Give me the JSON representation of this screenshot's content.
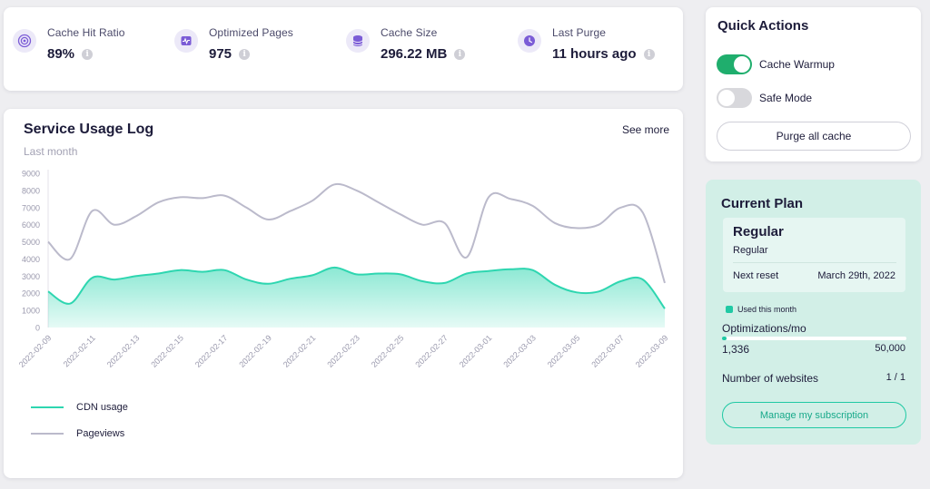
{
  "stats": [
    {
      "label": "Cache Hit Ratio",
      "value": "89%",
      "icon": "target-icon"
    },
    {
      "label": "Optimized Pages",
      "value": "975",
      "icon": "pulse-icon"
    },
    {
      "label": "Cache Size",
      "value": "296.22 MB",
      "icon": "database-icon"
    },
    {
      "label": "Last Purge",
      "value": "11 hours ago",
      "icon": "clock-icon"
    }
  ],
  "info_glyph": "i",
  "usage": {
    "title": "Service Usage Log",
    "subtitle": "Last month",
    "see_more": "See more"
  },
  "chart_data": {
    "type": "area",
    "ylim": [
      0,
      9000
    ],
    "y_ticks": [
      "0",
      "1000",
      "2000",
      "3000",
      "4000",
      "5000",
      "6000",
      "7000",
      "8000",
      "9000"
    ],
    "x_tick_labels": [
      "2022-02-09",
      "2022-02-11",
      "2022-02-13",
      "2022-02-15",
      "2022-02-17",
      "2022-02-19",
      "2022-02-21",
      "2022-02-23",
      "2022-02-25",
      "2022-02-27",
      "2022-03-01",
      "2022-03-03",
      "2022-03-05",
      "2022-03-07",
      "2022-03-09"
    ],
    "x": [
      "2022-02-09",
      "2022-02-10",
      "2022-02-11",
      "2022-02-12",
      "2022-02-13",
      "2022-02-14",
      "2022-02-15",
      "2022-02-16",
      "2022-02-17",
      "2022-02-18",
      "2022-02-19",
      "2022-02-20",
      "2022-02-21",
      "2022-02-22",
      "2022-02-23",
      "2022-02-24",
      "2022-02-25",
      "2022-02-26",
      "2022-02-27",
      "2022-02-28",
      "2022-03-01",
      "2022-03-02",
      "2022-03-03",
      "2022-03-04",
      "2022-03-05",
      "2022-03-06",
      "2022-03-07",
      "2022-03-08",
      "2022-03-09"
    ],
    "series": [
      {
        "name": "CDN usage",
        "color": "#2ed6b0",
        "fill": true,
        "values": [
          2100,
          1400,
          2900,
          2800,
          3000,
          3150,
          3350,
          3250,
          3350,
          2800,
          2550,
          2850,
          3050,
          3500,
          3100,
          3150,
          3100,
          2700,
          2600,
          3150,
          3300,
          3400,
          3350,
          2500,
          2050,
          2100,
          2700,
          2800,
          1100
        ]
      },
      {
        "name": "Pageviews",
        "color": "#bbbacb",
        "fill": false,
        "values": [
          5000,
          4000,
          6800,
          6000,
          6500,
          7300,
          7600,
          7550,
          7700,
          7000,
          6300,
          6800,
          7400,
          8350,
          8000,
          7300,
          6600,
          6000,
          6100,
          4100,
          7600,
          7500,
          7100,
          6100,
          5800,
          6000,
          7000,
          6700,
          2600
        ]
      }
    ],
    "legend_position": "bottom-left",
    "grid": false
  },
  "quick_actions": {
    "title": "Quick Actions",
    "cache_warmup_label": "Cache Warmup",
    "cache_warmup_on": true,
    "safe_mode_label": "Safe Mode",
    "safe_mode_on": false,
    "purge_label": "Purge all cache"
  },
  "plan": {
    "title": "Current Plan",
    "name": "Regular",
    "subname": "Regular",
    "next_reset_label": "Next reset",
    "next_reset_value": "March 29th, 2022",
    "used_label": "Used this month",
    "optimizations_label": "Optimizations/mo",
    "optimizations_used": "1,336",
    "optimizations_max": "50,000",
    "optimizations_fraction": 0.0267,
    "websites_label": "Number of websites",
    "websites_value": "1 / 1",
    "manage_label": "Manage my subscription"
  },
  "colors": {
    "accent": "#20c9a4",
    "toggle_on": "#1fae6d",
    "icon_bg": "#ece9f8",
    "icon_fg": "#7b5cd6"
  }
}
